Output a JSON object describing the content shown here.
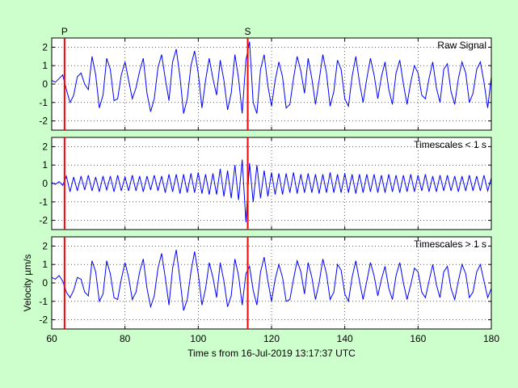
{
  "chart_data": {
    "type": "line",
    "phase_markers": [
      {
        "label": "P",
        "x": 63.5
      },
      {
        "label": "S",
        "x": 113.5
      }
    ],
    "xlabel": "Time s from 16-Jul-2019 13:17:37 UTC",
    "xlim": [
      60,
      180
    ],
    "x_ticks": [
      60,
      80,
      100,
      120,
      140,
      160,
      180
    ],
    "grid": true,
    "colors": {
      "trace": "#0000ff",
      "marker": "#ff0000",
      "background": "#ccffcc",
      "axes": "#ffffff"
    },
    "panels": [
      {
        "title": "Raw Signal",
        "ylabel": "",
        "ylim": [
          -2.5,
          2.5
        ],
        "y_ticks": [
          -2,
          -1,
          0,
          1,
          2
        ],
        "series": [
          {
            "x": [
              60,
              61,
              62,
              63,
              64,
              65,
              66,
              67,
              68,
              69,
              70,
              71,
              72,
              73,
              74,
              75,
              76,
              77,
              78,
              79,
              80,
              81,
              82,
              83,
              84,
              85,
              86,
              87,
              88,
              89,
              90,
              91,
              92,
              93,
              94,
              95,
              96,
              97,
              98,
              99,
              100,
              101,
              102,
              103,
              104,
              105,
              106,
              107,
              108,
              109,
              110,
              111,
              112,
              113,
              114,
              115,
              116,
              117,
              118,
              119,
              120,
              121,
              122,
              123,
              124,
              125,
              126,
              127,
              128,
              129,
              130,
              131,
              132,
              133,
              134,
              135,
              136,
              137,
              138,
              139,
              140,
              141,
              142,
              143,
              144,
              145,
              146,
              147,
              148,
              149,
              150,
              151,
              152,
              153,
              154,
              155,
              156,
              157,
              158,
              159,
              160,
              161,
              162,
              163,
              164,
              165,
              166,
              167,
              168,
              169,
              170,
              171,
              172,
              173,
              174,
              175,
              176,
              177,
              178,
              179,
              180
            ],
            "y": [
              0.2,
              0.1,
              0.3,
              0.5,
              -0.3,
              -1.0,
              -0.6,
              0.4,
              0.6,
              0.0,
              -0.3,
              1.5,
              0.5,
              -1.3,
              -0.6,
              1.4,
              0.8,
              -0.9,
              -0.8,
              0.5,
              1.2,
              0.2,
              -0.8,
              -0.2,
              0.7,
              1.4,
              -0.5,
              -1.5,
              -0.8,
              0.9,
              1.6,
              0.3,
              -0.9,
              1.2,
              1.9,
              0.4,
              -1.6,
              -0.8,
              1.0,
              1.8,
              0.6,
              -1.3,
              0.2,
              1.4,
              0.3,
              -0.6,
              1.3,
              0.2,
              -1.4,
              -0.5,
              1.6,
              0.3,
              -1.6,
              1.3,
              2.3,
              -1.0,
              -1.6,
              0.8,
              1.6,
              -0.1,
              -1.2,
              0.2,
              1.2,
              0.4,
              -1.3,
              -1.1,
              0.3,
              1.5,
              0.7,
              -0.5,
              1.4,
              0.3,
              -1.1,
              0.2,
              1.6,
              0.6,
              -1.2,
              -0.4,
              1.3,
              0.8,
              -0.8,
              -1.2,
              0.4,
              1.5,
              0.1,
              -1.0,
              0.3,
              1.4,
              0.5,
              -0.8,
              0.4,
              1.2,
              -0.3,
              -1.1,
              0.6,
              1.3,
              0.0,
              -1.1,
              0.1,
              1.0,
              0.6,
              -0.6,
              -0.8,
              0.3,
              1.2,
              -0.2,
              -1.0,
              0.8,
              1.1,
              -0.4,
              -1.1,
              0.3,
              1.2,
              0.6,
              -1.0,
              -0.5,
              0.8,
              1.2,
              0.1,
              -1.3,
              0.4
            ]
          }
        ]
      },
      {
        "title": "Timescales < 1 s",
        "ylabel": "",
        "ylim": [
          -2.5,
          2.5
        ],
        "y_ticks": [
          -2,
          -1,
          0,
          1,
          2
        ],
        "series": [
          {
            "x": [
              60,
              61,
              62,
              63,
              64,
              65,
              66,
              67,
              68,
              69,
              70,
              71,
              72,
              73,
              74,
              75,
              76,
              77,
              78,
              79,
              80,
              81,
              82,
              83,
              84,
              85,
              86,
              87,
              88,
              89,
              90,
              91,
              92,
              93,
              94,
              95,
              96,
              97,
              98,
              99,
              100,
              101,
              102,
              103,
              104,
              105,
              106,
              107,
              108,
              109,
              110,
              111,
              112,
              113,
              114,
              115,
              116,
              117,
              118,
              119,
              120,
              121,
              122,
              123,
              124,
              125,
              126,
              127,
              128,
              129,
              130,
              131,
              132,
              133,
              134,
              135,
              136,
              137,
              138,
              139,
              140,
              141,
              142,
              143,
              144,
              145,
              146,
              147,
              148,
              149,
              150,
              151,
              152,
              153,
              154,
              155,
              156,
              157,
              158,
              159,
              160,
              161,
              162,
              163,
              164,
              165,
              166,
              167,
              168,
              169,
              170,
              171,
              172,
              173,
              174,
              175,
              176,
              177,
              178,
              179,
              180
            ],
            "y": [
              0.05,
              -0.05,
              0.1,
              -0.1,
              0.4,
              -0.45,
              0.35,
              -0.4,
              0.4,
              -0.35,
              0.45,
              -0.4,
              0.35,
              -0.45,
              0.4,
              -0.35,
              0.4,
              -0.45,
              0.45,
              -0.4,
              0.35,
              -0.4,
              0.45,
              -0.4,
              0.4,
              -0.45,
              0.4,
              -0.35,
              0.45,
              -0.4,
              0.4,
              -0.5,
              0.5,
              -0.45,
              0.5,
              -0.55,
              0.5,
              -0.5,
              0.55,
              -0.5,
              0.6,
              -0.55,
              0.5,
              -0.6,
              0.55,
              -0.6,
              0.8,
              -0.7,
              0.7,
              -0.8,
              1.0,
              -0.9,
              1.3,
              -2.1,
              1.1,
              -1.0,
              1.0,
              -0.8,
              0.7,
              -0.7,
              0.6,
              -0.6,
              0.55,
              -0.6,
              0.55,
              -0.5,
              0.6,
              -0.55,
              0.5,
              -0.5,
              0.55,
              -0.5,
              0.5,
              -0.55,
              0.5,
              -0.5,
              0.6,
              -0.5,
              0.5,
              -0.5,
              0.55,
              -0.5,
              0.5,
              -0.55,
              0.5,
              -0.5,
              0.5,
              -0.45,
              0.5,
              -0.5,
              0.45,
              -0.5,
              0.5,
              -0.45,
              0.45,
              -0.5,
              0.45,
              -0.45,
              0.5,
              -0.45,
              0.45,
              -0.4,
              0.5,
              -0.45,
              0.4,
              -0.45,
              0.45,
              -0.4,
              0.45,
              -0.4,
              0.4,
              -0.45,
              0.4,
              -0.4,
              0.45,
              -0.4,
              0.4,
              -0.4,
              0.45,
              -0.4,
              0.3
            ]
          }
        ]
      },
      {
        "title": "Timescales > 1 s",
        "ylabel": "Velocity µm/s",
        "ylim": [
          -2.5,
          2.5
        ],
        "y_ticks": [
          -2,
          -1,
          0,
          1,
          2
        ],
        "series": [
          {
            "x": [
              60,
              61,
              62,
              63,
              64,
              65,
              66,
              67,
              68,
              69,
              70,
              71,
              72,
              73,
              74,
              75,
              76,
              77,
              78,
              79,
              80,
              81,
              82,
              83,
              84,
              85,
              86,
              87,
              88,
              89,
              90,
              91,
              92,
              93,
              94,
              95,
              96,
              97,
              98,
              99,
              100,
              101,
              102,
              103,
              104,
              105,
              106,
              107,
              108,
              109,
              110,
              111,
              112,
              113,
              114,
              115,
              116,
              117,
              118,
              119,
              120,
              121,
              122,
              123,
              124,
              125,
              126,
              127,
              128,
              129,
              130,
              131,
              132,
              133,
              134,
              135,
              136,
              137,
              138,
              139,
              140,
              141,
              142,
              143,
              144,
              145,
              146,
              147,
              148,
              149,
              150,
              151,
              152,
              153,
              154,
              155,
              156,
              157,
              158,
              159,
              160,
              161,
              162,
              163,
              164,
              165,
              166,
              167,
              168,
              169,
              170,
              171,
              172,
              173,
              174,
              175,
              176,
              177,
              178,
              179,
              180
            ],
            "y": [
              0.3,
              0.2,
              0.4,
              0.1,
              -0.5,
              -0.8,
              -0.4,
              0.3,
              0.2,
              -0.5,
              -0.7,
              1.2,
              0.6,
              -1.0,
              -0.6,
              1.2,
              0.5,
              -0.8,
              -0.9,
              0.2,
              1.1,
              0.3,
              -0.9,
              -0.5,
              0.6,
              1.3,
              -0.3,
              -1.3,
              -0.7,
              0.8,
              1.6,
              0.3,
              -1.2,
              0.8,
              1.8,
              0.2,
              -1.5,
              -0.9,
              0.6,
              1.7,
              0.5,
              -1.2,
              -0.3,
              1.1,
              0.3,
              -0.8,
              1.1,
              0.1,
              -1.3,
              -0.7,
              1.3,
              0.4,
              -1.2,
              0.5,
              0.9,
              -0.4,
              -1.2,
              0.6,
              1.4,
              0.1,
              -1.0,
              0.2,
              1.0,
              0.3,
              -1.0,
              -0.9,
              0.2,
              1.2,
              0.6,
              -0.6,
              1.1,
              0.3,
              -0.9,
              0.0,
              1.3,
              0.5,
              -0.9,
              -0.5,
              1.0,
              0.7,
              -0.6,
              -1.0,
              0.3,
              1.2,
              0.1,
              -0.9,
              0.1,
              1.1,
              0.4,
              -0.7,
              0.2,
              0.9,
              -0.3,
              -0.9,
              0.4,
              1.1,
              0.0,
              -0.9,
              -0.1,
              0.8,
              0.6,
              -0.5,
              -0.8,
              0.1,
              1.0,
              -0.1,
              -0.8,
              0.6,
              0.9,
              -0.3,
              -0.9,
              0.1,
              1.0,
              0.5,
              -0.8,
              -0.5,
              0.6,
              1.0,
              0.1,
              -0.8,
              -0.3
            ]
          }
        ]
      }
    ]
  }
}
